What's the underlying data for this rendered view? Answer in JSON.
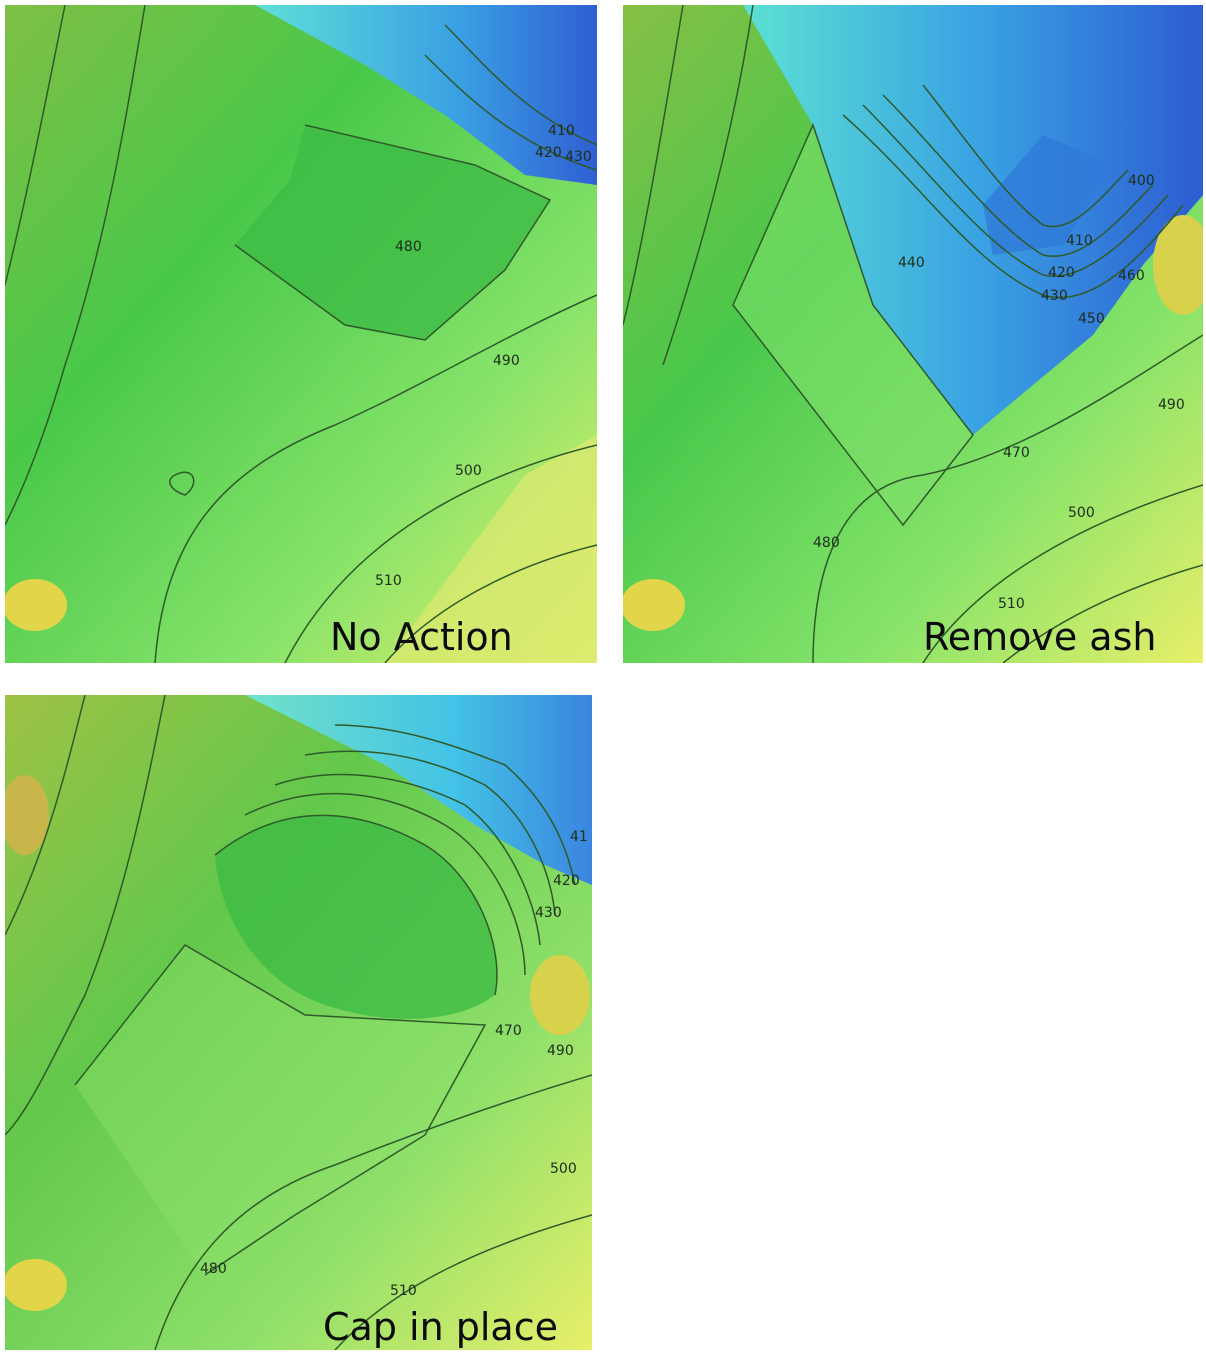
{
  "panels": {
    "no_action": {
      "title": "No Action",
      "labels": [
        "410",
        "420",
        "430",
        "480",
        "490",
        "500",
        "510"
      ]
    },
    "remove_ash": {
      "title": "Remove ash",
      "labels": [
        "400",
        "410",
        "420",
        "430",
        "450",
        "460",
        "440",
        "490",
        "470",
        "500",
        "480",
        "510"
      ]
    },
    "cap_in_place": {
      "title": "Cap in place",
      "labels": [
        "41",
        "420",
        "430",
        "470",
        "490",
        "500",
        "480",
        "510"
      ]
    }
  },
  "colors": {
    "blue": "#2f62d6",
    "cyan": "#3fd3e8",
    "green": "#35c24a",
    "light_green": "#7fe06a",
    "yellow": "#d9e85a",
    "orange": "#d98c3a",
    "contour": "#2f5a2a"
  }
}
